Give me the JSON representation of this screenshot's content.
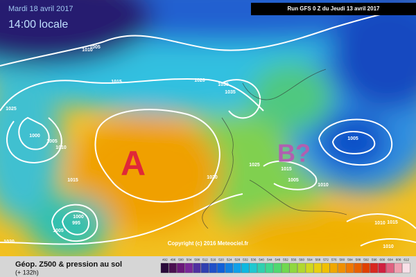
{
  "header": {
    "date": "Mardi 18 avril 2017",
    "time": "14:00 locale",
    "run": "Run GFS 0 Z du Jeudi 13 avril 2017"
  },
  "map": {
    "high_label": "A",
    "low_label": "B?",
    "isobar_labels": [
      1005,
      1010,
      1015,
      1020,
      1030,
      1035,
      1025,
      1000,
      1005,
      1010,
      1015,
      1020,
      1025,
      1015,
      1005,
      1010,
      1005,
      1000,
      995,
      1005,
      1020,
      1015,
      1010,
      1010
    ],
    "copyright": "Copyright (c) 2016 Meteociel.fr"
  },
  "footer": {
    "title": "Géop. Z500 & pression au sol",
    "lead": "(+ 132h)"
  },
  "colorbar": {
    "ticks": [
      492,
      496,
      500,
      504,
      508,
      512,
      516,
      520,
      524,
      528,
      532,
      536,
      540,
      544,
      548,
      552,
      556,
      560,
      564,
      568,
      572,
      576,
      580,
      584,
      588,
      592,
      596,
      600,
      604,
      608,
      612
    ],
    "colors": [
      "#2a0a3a",
      "#4a1050",
      "#6a1878",
      "#7a2898",
      "#5030a0",
      "#3040b0",
      "#2050c8",
      "#1060d8",
      "#1080e0",
      "#10a0e8",
      "#10b8e0",
      "#20c8d0",
      "#30d0b0",
      "#40d890",
      "#50d870",
      "#70d850",
      "#90d840",
      "#b0d830",
      "#d0d820",
      "#e8d010",
      "#f0c000",
      "#f0a800",
      "#f09000",
      "#f07800",
      "#e86000",
      "#e04000",
      "#d82820",
      "#d02040",
      "#e06080",
      "#f0a0b0",
      "#f8e0e8"
    ]
  }
}
